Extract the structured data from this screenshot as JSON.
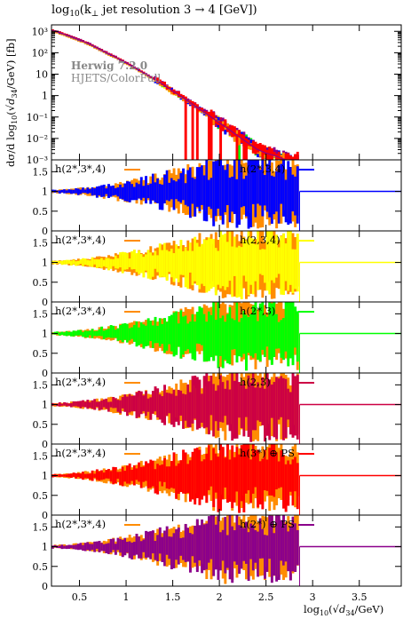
{
  "chart_data": {
    "type": "bar",
    "title": "log10(k⊥ jet resolution 3 → 4 [GeV])",
    "title_parts": {
      "prefix": "log",
      "sub": "10",
      "body": "(k",
      "perp": "⊥",
      "rest": " jet resolution 3 → 4 [GeV])"
    },
    "xlabel": "log10(√d34/GeV)",
    "xlabel_parts": {
      "prefix": "log",
      "sub": "10",
      "open": "(",
      "root": "√",
      "d": "d",
      "dsub": "34",
      "rest": "/GeV)"
    },
    "ylabel": "dσ/d log10(√d34/GeV) [fb]",
    "ylabel_parts": {
      "a": "dσ/d log",
      "sub": "10",
      "b": "(√",
      "d": "d",
      "dsub": "34",
      "c": "/GeV) [fb]"
    },
    "xlim": [
      0.2,
      3.95
    ],
    "xticks": [
      "0.5",
      "1",
      "1.5",
      "2",
      "2.5",
      "3",
      "3.5"
    ],
    "xtick_values": [
      0.5,
      1,
      1.5,
      2,
      2.5,
      3,
      3.5
    ],
    "y_scale": "log",
    "main_ylim": [
      0.001,
      2000
    ],
    "main_yticks": [
      "10³",
      "10²",
      "10",
      "1",
      "10⁻¹",
      "10⁻²",
      "10⁻³"
    ],
    "main_ytick_values": [
      1000,
      100,
      10,
      1,
      0.1,
      0.01,
      0.001
    ],
    "watermark": {
      "line1": "Herwig 7.2.0",
      "line2": "HJETS/ColorFull"
    },
    "reference_series": "h(2*,3*,4)",
    "reference_color": "#ff8c00",
    "series": [
      {
        "name": "h(2*,3*,4)",
        "color": "#ff8c00"
      },
      {
        "name": "h(2*,3,4)",
        "color": "#0000ff"
      },
      {
        "name": "h(2,3,4)",
        "color": "#ffff00"
      },
      {
        "name": "h(2*,3)",
        "color": "#00ff00"
      },
      {
        "name": "h(2,3)",
        "color": "#cc0044"
      },
      {
        "name": "h(3*) ⊕ PS",
        "color": "#ff0000"
      },
      {
        "name": "h(2*) ⊕ PS",
        "color": "#8b008b"
      }
    ],
    "main_x": [
      0.21,
      0.31,
      0.41,
      0.51,
      0.61,
      0.71,
      0.81,
      0.91,
      1.01,
      1.11,
      1.21,
      1.31,
      1.41,
      1.51,
      1.61,
      1.71,
      1.81,
      1.91,
      2.01,
      2.11,
      2.21,
      2.31,
      2.41,
      2.51,
      2.61,
      2.71,
      2.81
    ],
    "main_y": [
      1100,
      800,
      550,
      380,
      250,
      150,
      90,
      55,
      32,
      18,
      10,
      5.5,
      3,
      1.5,
      0.8,
      0.4,
      0.2,
      0.1,
      0.05,
      0.025,
      0.012,
      0.006,
      0.003,
      0.002,
      0.0015,
      0.001,
      0.001
    ],
    "ratio_panels": [
      {
        "label": "h(2*,3*,4)",
        "series": "h(2*,3,4)",
        "series_label": "h(2*,3,4)",
        "color": "#0000ff",
        "ylim": [
          0,
          1.8
        ],
        "yticks": [
          "0",
          "0.5",
          "1",
          "1.5"
        ],
        "ytick_values": [
          0,
          0.5,
          1,
          1.5
        ]
      },
      {
        "label": "h(2*,3*,4)",
        "series": "h(2,3,4)",
        "series_label": "h(2,3,4)",
        "color": "#ffff00",
        "ylim": [
          0,
          1.8
        ],
        "yticks": [
          "0",
          "0.5",
          "1",
          "1.5"
        ],
        "ytick_values": [
          0,
          0.5,
          1,
          1.5
        ]
      },
      {
        "label": "h(2*,3*,4)",
        "series": "h(2*,3)",
        "series_label": "h(2*,3)",
        "color": "#00ff00",
        "ylim": [
          0,
          1.8
        ],
        "yticks": [
          "0",
          "0.5",
          "1",
          "1.5"
        ],
        "ytick_values": [
          0,
          0.5,
          1,
          1.5
        ]
      },
      {
        "label": "h(2*,3*,4)",
        "series": "h(2,3)",
        "series_label": "h(2,3)",
        "color": "#cc0044",
        "ylim": [
          0,
          1.8
        ],
        "yticks": [
          "0",
          "0.5",
          "1",
          "1.5"
        ],
        "ytick_values": [
          0,
          0.5,
          1,
          1.5
        ]
      },
      {
        "label": "h(2*,3*,4)",
        "series": "h(3*) ⊕ PS",
        "series_label": "h(3*) ⊕ PS",
        "color": "#ff0000",
        "ylim": [
          0,
          1.8
        ],
        "yticks": [
          "0",
          "0.5",
          "1",
          "1.5"
        ],
        "ytick_values": [
          0,
          0.5,
          1,
          1.5
        ]
      },
      {
        "label": "h(2*,3*,4)",
        "series": "h(2*) ⊕ PS",
        "series_label": "h(2*) ⊕ PS",
        "color": "#8b008b",
        "ylim": [
          0,
          1.8
        ],
        "yticks": [
          "0",
          "0.5",
          "1",
          "1.5"
        ],
        "ytick_values": [
          0,
          0.5,
          1,
          1.5
        ]
      }
    ]
  }
}
